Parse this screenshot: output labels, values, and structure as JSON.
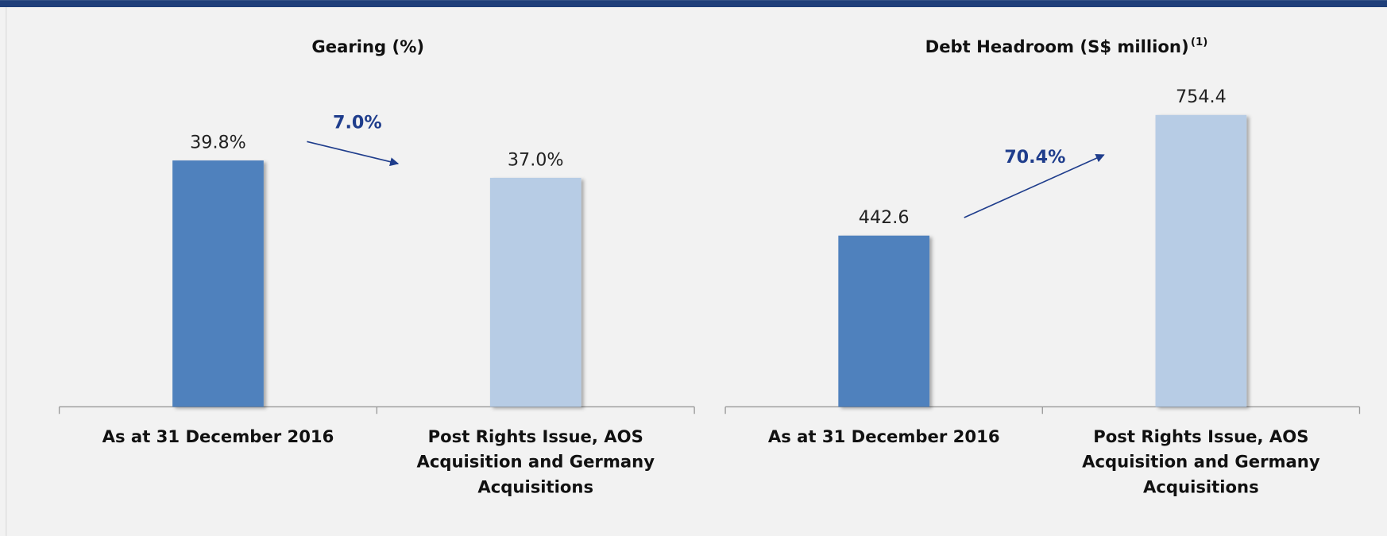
{
  "chart_data": [
    {
      "type": "bar",
      "title": "Gearing (%)",
      "categories": [
        "As at 31 December 2016",
        "Post Rights Issue, AOS Acquisition and Germany Acquisitions"
      ],
      "values": [
        39.8,
        37.0
      ],
      "value_labels": [
        "39.8%",
        "37.0%"
      ],
      "colors": [
        "#4f81bd",
        "#b7cce5"
      ],
      "ylim": [
        0,
        50
      ],
      "annotation": "7.0%"
    },
    {
      "type": "bar",
      "title": "Debt Headroom (S$ million)",
      "title_note": "(1)",
      "categories": [
        "As at 31 December 2016",
        "Post Rights Issue, AOS Acquisition and Germany Acquisitions"
      ],
      "values": [
        442.6,
        754.4
      ],
      "colors": [
        "#4f81bd",
        "#b7cce5"
      ],
      "ylim": [
        0,
        800
      ],
      "annotation": "70.4%"
    }
  ]
}
